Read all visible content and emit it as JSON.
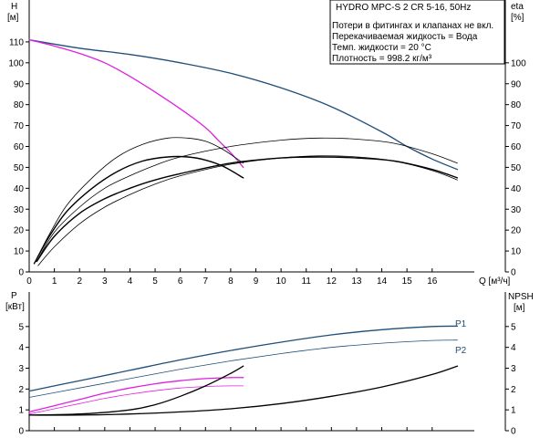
{
  "chart_data": [
    {
      "type": "line",
      "title": "HYDRO MPC-S 2 CR 5-16, 50Hz",
      "notes": [
        "Потери в фитингах и клапанах не вкл.",
        "Перекачиваемая жидкость = Вода",
        "Темп. жидкости = 20 °C",
        "Плотность = 998.2 кг/м³"
      ],
      "xlabel": "Q [м³/ч]",
      "ylabel_left": [
        "H",
        "[м]"
      ],
      "ylabel_right": [
        "eta",
        "[%]"
      ],
      "xlim": [
        0,
        18
      ],
      "ylim": [
        0,
        120
      ],
      "ylim_right": [
        0,
        120
      ],
      "xticks": [
        "0",
        "1",
        "2",
        "3",
        "4",
        "5",
        "6",
        "7",
        "8",
        "9",
        "10",
        "11",
        "12",
        "13",
        "14",
        "15",
        "16"
      ],
      "yticks_left": [
        "0",
        "10",
        "20",
        "30",
        "40",
        "50",
        "60",
        "70",
        "80",
        "90",
        "100",
        "110"
      ],
      "yticks_right": [
        "0",
        "10",
        "20",
        "30",
        "40",
        "50",
        "60",
        "70",
        "80",
        "90",
        "100"
      ],
      "grid": false,
      "series": [
        {
          "color": "#1f4e79",
          "width": 1.3,
          "x": [
            0,
            2,
            4,
            6,
            8,
            10,
            12,
            14,
            15,
            16,
            17
          ],
          "y": [
            111,
            107,
            104,
            100,
            95,
            88,
            79,
            67,
            60,
            54,
            49
          ]
        },
        {
          "color": "#e020e0",
          "width": 1.3,
          "x": [
            0,
            1,
            2,
            3,
            4,
            5,
            6,
            7,
            7.5,
            8,
            8.5
          ],
          "y": [
            111,
            108,
            104.5,
            100,
            93.5,
            86,
            78,
            69,
            63,
            57,
            50
          ]
        },
        {
          "color": "#000000",
          "width": 1.4,
          "x": [
            0.2,
            0.8,
            1.5,
            2.5,
            3.5,
            4.5,
            5.5,
            6.3,
            7,
            7.7,
            8.5
          ],
          "y": [
            4,
            17,
            29,
            40,
            48,
            53,
            55,
            55,
            53.5,
            50.5,
            45
          ]
        },
        {
          "color": "#000000",
          "width": 0.8,
          "x": [
            0.2,
            0.8,
            1.5,
            2.5,
            3.5,
            4.5,
            5.5,
            6.3,
            7,
            7.7,
            8.5
          ],
          "y": [
            4,
            18,
            32,
            45,
            55,
            61,
            64,
            64,
            62.5,
            58.5,
            52
          ]
        },
        {
          "color": "#000000",
          "width": 1.4,
          "x": [
            0.3,
            1,
            2,
            3,
            4,
            5,
            6,
            8,
            10,
            11.5,
            13,
            14.5,
            16,
            17
          ],
          "y": [
            5,
            17,
            28,
            35,
            40,
            44,
            47,
            52,
            54.5,
            55,
            54.5,
            53,
            49,
            45
          ]
        },
        {
          "color": "#000000",
          "width": 0.8,
          "x": [
            0.3,
            1,
            2,
            3,
            4,
            5,
            6,
            8,
            10,
            11.5,
            13,
            14.5,
            16,
            17
          ],
          "y": [
            5,
            19,
            31,
            40,
            46,
            51,
            55,
            60,
            63,
            64,
            63.5,
            61.5,
            56.5,
            52
          ]
        },
        {
          "color": "#000000",
          "width": 0.8,
          "x": [
            0.35,
            1,
            2,
            3,
            4,
            5,
            6,
            8,
            10,
            11.5,
            13,
            14.5,
            16,
            17
          ],
          "y": [
            3,
            12,
            23,
            31,
            37,
            42,
            46,
            51.5,
            54.5,
            55.5,
            55,
            53,
            48.5,
            44
          ]
        }
      ]
    },
    {
      "type": "line",
      "ylabel_left": [
        "P",
        "[кВт]"
      ],
      "ylabel_right": [
        "NPSH",
        "[м]"
      ],
      "xlim": [
        0,
        18
      ],
      "ylim": [
        0,
        6
      ],
      "ylim_right": [
        0,
        6
      ],
      "yticks_left": [
        "0",
        "1",
        "2",
        "3",
        "4",
        "5"
      ],
      "yticks_right": [
        "0",
        "1",
        "2",
        "3",
        "4",
        "5"
      ],
      "grid": false,
      "series": [
        {
          "name": "P1",
          "color": "#1f4e79",
          "width": 1.3,
          "x": [
            0,
            2,
            4,
            6,
            8,
            10,
            12,
            14,
            16,
            17
          ],
          "y": [
            1.9,
            2.4,
            2.9,
            3.4,
            3.85,
            4.25,
            4.6,
            4.85,
            5.0,
            5.02
          ]
        },
        {
          "name": "P2",
          "color": "#1f4e79",
          "width": 0.8,
          "x": [
            0,
            2,
            4,
            6,
            8,
            10,
            12,
            14,
            16,
            17
          ],
          "y": [
            1.6,
            2.05,
            2.5,
            2.95,
            3.35,
            3.7,
            4.0,
            4.2,
            4.33,
            4.35
          ]
        },
        {
          "color": "#e020e0",
          "width": 1.3,
          "x": [
            0,
            1,
            2,
            3,
            4,
            5,
            6,
            7,
            8,
            8.5
          ],
          "y": [
            0.9,
            1.2,
            1.5,
            1.8,
            2.05,
            2.25,
            2.4,
            2.5,
            2.55,
            2.55
          ]
        },
        {
          "color": "#e020e0",
          "width": 0.8,
          "x": [
            0,
            1,
            2,
            3,
            4,
            5,
            6,
            7,
            8,
            8.5
          ],
          "y": [
            0.8,
            1.05,
            1.3,
            1.55,
            1.75,
            1.92,
            2.05,
            2.12,
            2.15,
            2.15
          ]
        },
        {
          "color": "#000000",
          "width": 1.3,
          "x": [
            0,
            2,
            4,
            5,
            6,
            7,
            8,
            8.5
          ],
          "y": [
            0.75,
            0.8,
            1.0,
            1.25,
            1.65,
            2.15,
            2.75,
            3.1
          ]
        },
        {
          "color": "#000000",
          "width": 1.3,
          "x": [
            0,
            2,
            4,
            6,
            8,
            10,
            12,
            14,
            16,
            17
          ],
          "y": [
            0.75,
            0.75,
            0.8,
            0.9,
            1.05,
            1.3,
            1.65,
            2.1,
            2.7,
            3.1
          ]
        }
      ]
    }
  ]
}
